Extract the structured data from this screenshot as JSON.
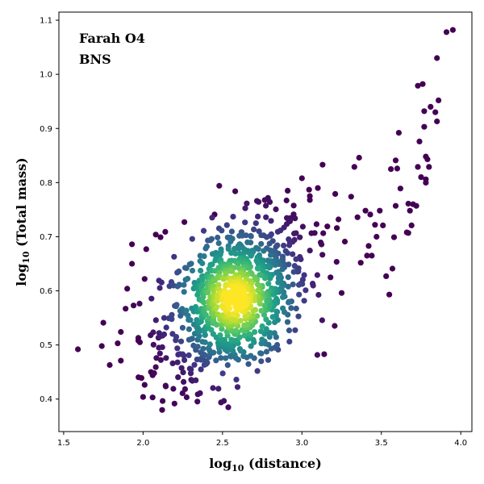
{
  "chart_data": {
    "type": "scatter",
    "title": "",
    "xlabel": "log$_{10}$ (distance)",
    "xlabel_parts": {
      "prefix": "log",
      "sub": "10",
      "suffix": " (distance)"
    },
    "ylabel_parts": {
      "prefix": "log",
      "sub": "10",
      "suffix": " (Total mass)"
    },
    "xlim": [
      1.47,
      4.07
    ],
    "ylim": [
      0.34,
      1.115
    ],
    "x_ticks": [
      1.5,
      2.0,
      2.5,
      3.0,
      3.5,
      4.0
    ],
    "x_tick_labels": [
      "1.5",
      "2.0",
      "2.5",
      "3.0",
      "3.5",
      "4.0"
    ],
    "y_ticks": [
      0.4,
      0.5,
      0.6,
      0.7,
      0.8,
      0.9,
      1.0,
      1.1
    ],
    "y_tick_labels": [
      "0.4",
      "0.5",
      "0.6",
      "0.7",
      "0.8",
      "0.9",
      "1.0",
      "1.1"
    ],
    "grid": false,
    "colormap": "viridis (point density)",
    "annotations": [
      {
        "text": "Farah  O4",
        "color": "#0000ee",
        "position": "top-left"
      },
      {
        "text": "BNS",
        "color": "#008000",
        "position": "top-left"
      }
    ],
    "points_sparse": [
      [
        1.59,
        0.492
      ],
      [
        1.74,
        0.498
      ],
      [
        1.75,
        0.541
      ],
      [
        1.79,
        0.463
      ],
      [
        1.84,
        0.503
      ],
      [
        1.86,
        0.471
      ],
      [
        1.86,
        0.524
      ],
      [
        1.89,
        0.567
      ],
      [
        1.9,
        0.604
      ],
      [
        1.93,
        0.686
      ],
      [
        1.93,
        0.65
      ],
      [
        1.94,
        0.573
      ],
      [
        1.97,
        0.508
      ],
      [
        1.97,
        0.513
      ],
      [
        1.98,
        0.505
      ],
      [
        1.99,
        0.439
      ],
      [
        2.0,
        0.404
      ],
      [
        2.01,
        0.622
      ],
      [
        2.02,
        0.677
      ],
      [
        2.05,
        0.45
      ],
      [
        2.06,
        0.444
      ],
      [
        2.06,
        0.403
      ],
      [
        2.08,
        0.704
      ],
      [
        2.11,
        0.699
      ],
      [
        2.12,
        0.38
      ],
      [
        2.14,
        0.709
      ],
      [
        2.26,
        0.727
      ],
      [
        2.45,
        0.741
      ],
      [
        2.58,
        0.784
      ],
      [
        2.91,
        0.785
      ],
      [
        3.0,
        0.808
      ],
      [
        3.05,
        0.775
      ],
      [
        3.1,
        0.79
      ],
      [
        3.13,
        0.833
      ],
      [
        3.14,
        0.483
      ],
      [
        3.16,
        0.719
      ],
      [
        3.18,
        0.625
      ],
      [
        3.21,
        0.779
      ],
      [
        3.22,
        0.716
      ],
      [
        3.23,
        0.732
      ],
      [
        3.25,
        0.596
      ],
      [
        3.27,
        0.691
      ],
      [
        3.31,
        0.774
      ],
      [
        3.33,
        0.829
      ],
      [
        3.35,
        0.736
      ],
      [
        3.36,
        0.846
      ],
      [
        3.37,
        0.652
      ],
      [
        3.4,
        0.748
      ],
      [
        3.41,
        0.665
      ],
      [
        3.42,
        0.683
      ],
      [
        3.43,
        0.741
      ],
      [
        3.44,
        0.665
      ],
      [
        3.46,
        0.722
      ],
      [
        3.47,
        0.7
      ],
      [
        3.49,
        0.748
      ],
      [
        3.51,
        0.721
      ],
      [
        3.53,
        0.627
      ],
      [
        3.55,
        0.593
      ],
      [
        3.56,
        0.825
      ],
      [
        3.57,
        0.641
      ],
      [
        3.58,
        0.699
      ],
      [
        3.59,
        0.757
      ],
      [
        3.59,
        0.841
      ],
      [
        3.6,
        0.826
      ],
      [
        3.61,
        0.892
      ],
      [
        3.62,
        0.789
      ],
      [
        3.66,
        0.708
      ],
      [
        3.67,
        0.707
      ],
      [
        3.67,
        0.761
      ],
      [
        3.68,
        0.748
      ],
      [
        3.69,
        0.721
      ],
      [
        3.7,
        0.76
      ],
      [
        3.72,
        0.757
      ],
      [
        3.73,
        0.829
      ],
      [
        3.73,
        0.979
      ],
      [
        3.74,
        0.876
      ],
      [
        3.75,
        0.81
      ],
      [
        3.76,
        0.982
      ],
      [
        3.77,
        0.903
      ],
      [
        3.77,
        0.932
      ],
      [
        3.78,
        0.848
      ],
      [
        3.78,
        0.8
      ],
      [
        3.78,
        0.806
      ],
      [
        3.79,
        0.843
      ],
      [
        3.8,
        0.829
      ],
      [
        3.81,
        0.94
      ],
      [
        3.84,
        0.93
      ],
      [
        3.85,
        0.913
      ],
      [
        3.85,
        1.03
      ],
      [
        3.86,
        0.952
      ],
      [
        3.91,
        1.078
      ],
      [
        3.95,
        1.082
      ]
    ],
    "dense_cloud": {
      "description": "approximately 900 additional points forming a density cloud",
      "center": [
        2.58,
        0.585
      ],
      "spread_x": 0.23,
      "spread_y": 0.075,
      "correlation": 0.42,
      "count": 900
    },
    "point_colors": {
      "low_density": "#440154",
      "mid_density": "#21918c",
      "high_density": "#fde725"
    }
  }
}
